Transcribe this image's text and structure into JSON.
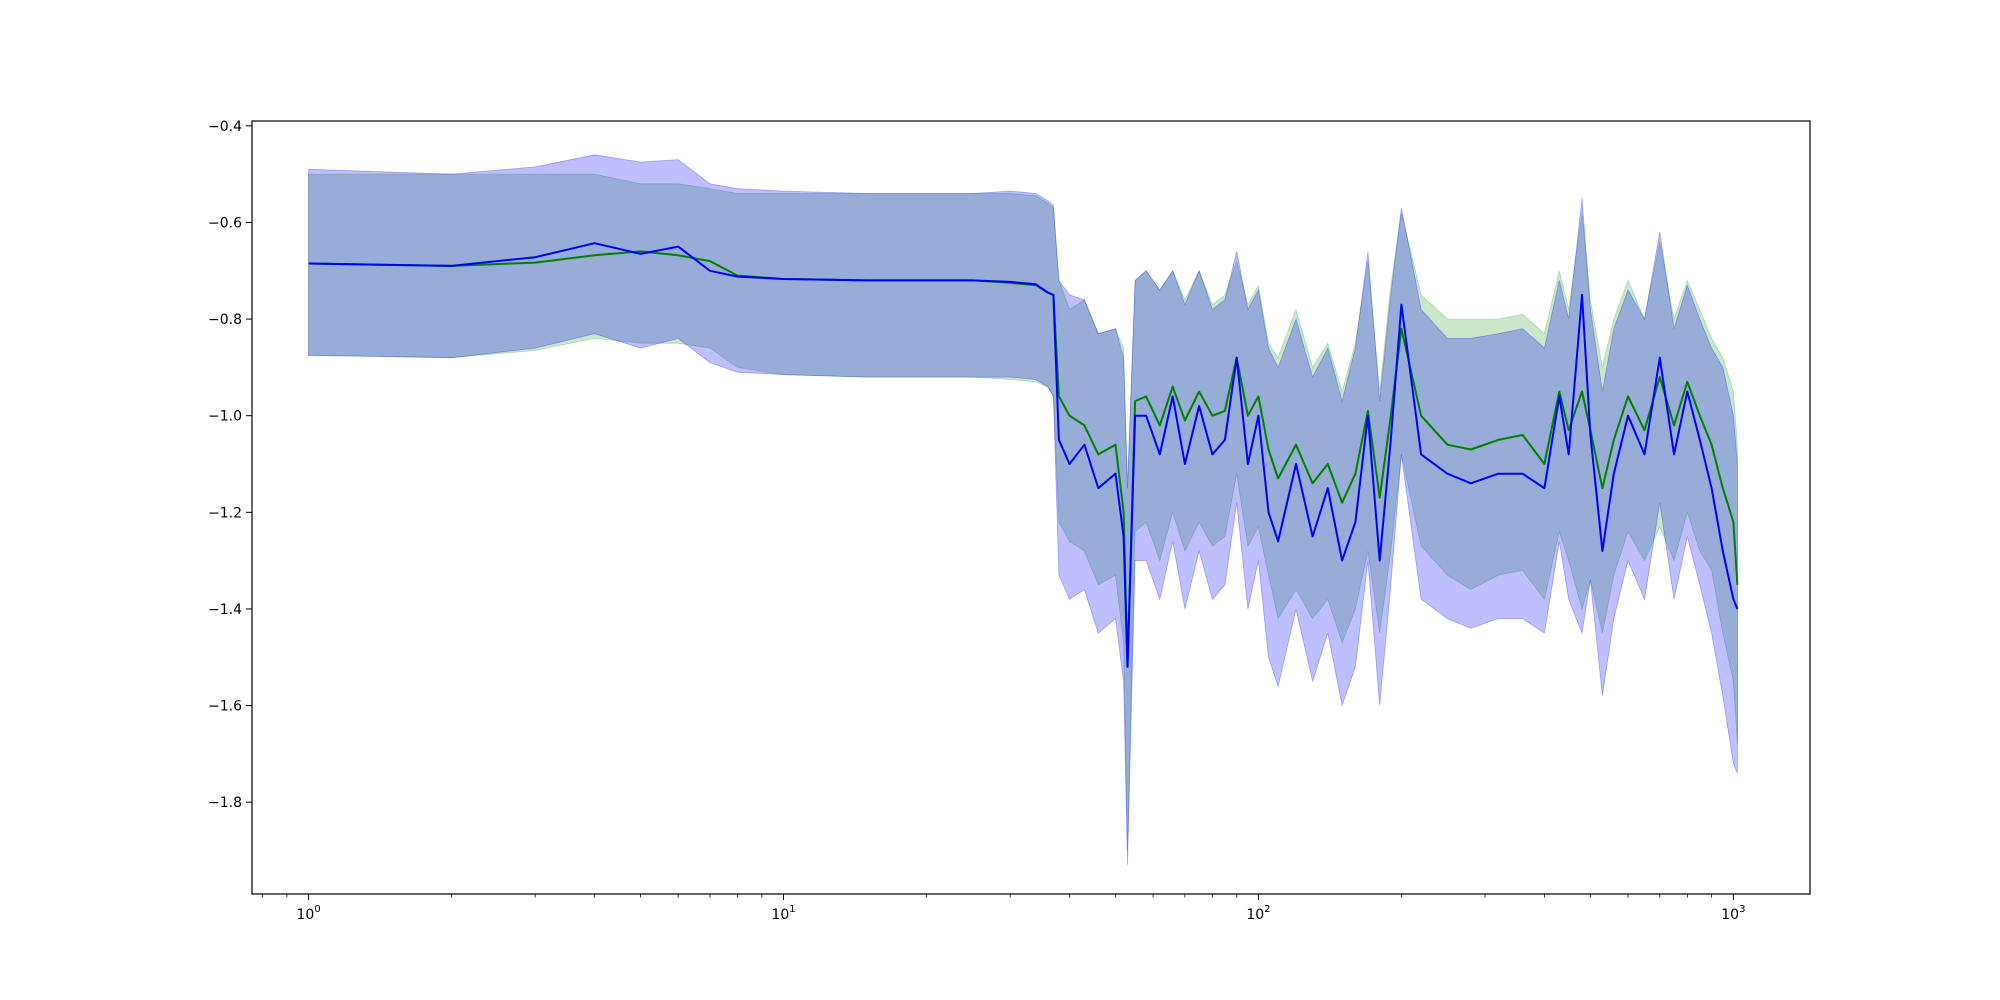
{
  "chart_data": {
    "type": "line",
    "title": "",
    "xlabel": "",
    "ylabel": "",
    "xscale": "log",
    "xlim": [
      0.76,
      1450
    ],
    "ylim": [
      -1.99,
      -0.39
    ],
    "grid": false,
    "x_ticks": [
      {
        "value": 1,
        "base": "10",
        "exp": "0"
      },
      {
        "value": 10,
        "base": "10",
        "exp": "1"
      },
      {
        "value": 100,
        "base": "10",
        "exp": "2"
      },
      {
        "value": 1000,
        "base": "10",
        "exp": "3"
      }
    ],
    "y_ticks": [
      {
        "value": -0.4,
        "label": "−0.4"
      },
      {
        "value": -0.6,
        "label": "−0.6"
      },
      {
        "value": -0.8,
        "label": "−0.8"
      },
      {
        "value": -1.0,
        "label": "−1.0"
      },
      {
        "value": -1.2,
        "label": "−1.2"
      },
      {
        "value": -1.4,
        "label": "−1.4"
      },
      {
        "value": -1.6,
        "label": "−1.6"
      },
      {
        "value": -1.8,
        "label": "−1.8"
      }
    ],
    "series": [
      {
        "color": "#008000",
        "band_color": "#2ca02c",
        "x": [
          1,
          2,
          3,
          4,
          5,
          6,
          7,
          8,
          10,
          15,
          20,
          25,
          30,
          34,
          36,
          37,
          38,
          40,
          43,
          46,
          50,
          52,
          53,
          55,
          58,
          62,
          66,
          70,
          75,
          80,
          85,
          90,
          95,
          100,
          105,
          110,
          120,
          130,
          140,
          150,
          160,
          170,
          180,
          190,
          200,
          220,
          250,
          280,
          320,
          360,
          400,
          430,
          450,
          480,
          500,
          530,
          560,
          600,
          650,
          700,
          750,
          800,
          850,
          900,
          950,
          1000,
          1020
        ],
        "y": [
          -0.685,
          -0.69,
          -0.683,
          -0.668,
          -0.66,
          -0.668,
          -0.68,
          -0.71,
          -0.717,
          -0.72,
          -0.72,
          -0.72,
          -0.725,
          -0.73,
          -0.745,
          -0.75,
          -0.96,
          -1.0,
          -1.02,
          -1.08,
          -1.06,
          -1.2,
          -1.52,
          -0.97,
          -0.96,
          -1.02,
          -0.94,
          -1.01,
          -0.95,
          -1.0,
          -0.99,
          -0.88,
          -1.0,
          -0.96,
          -1.07,
          -1.13,
          -1.06,
          -1.14,
          -1.1,
          -1.18,
          -1.12,
          -0.99,
          -1.17,
          -1.0,
          -0.82,
          -1.0,
          -1.06,
          -1.07,
          -1.05,
          -1.04,
          -1.1,
          -0.95,
          -1.03,
          -0.95,
          -1.03,
          -1.15,
          -1.05,
          -0.96,
          -1.03,
          -0.92,
          -1.02,
          -0.93,
          -1.0,
          -1.06,
          -1.15,
          -1.22,
          -1.35
        ],
        "upper": [
          -0.5,
          -0.5,
          -0.5,
          -0.5,
          -0.52,
          -0.52,
          -0.53,
          -0.54,
          -0.54,
          -0.54,
          -0.54,
          -0.54,
          -0.54,
          -0.545,
          -0.56,
          -0.57,
          -0.72,
          -0.78,
          -0.76,
          -0.83,
          -0.82,
          -0.86,
          -1.15,
          -0.72,
          -0.7,
          -0.74,
          -0.7,
          -0.76,
          -0.7,
          -0.77,
          -0.75,
          -0.68,
          -0.77,
          -0.73,
          -0.85,
          -0.88,
          -0.78,
          -0.9,
          -0.85,
          -0.95,
          -0.85,
          -0.68,
          -0.95,
          -0.73,
          -0.58,
          -0.75,
          -0.8,
          -0.8,
          -0.8,
          -0.79,
          -0.83,
          -0.7,
          -0.78,
          -0.58,
          -0.76,
          -0.9,
          -0.8,
          -0.72,
          -0.8,
          -0.64,
          -0.8,
          -0.72,
          -0.78,
          -0.84,
          -0.88,
          -0.95,
          -1.06
        ],
        "lower": [
          -0.875,
          -0.88,
          -0.865,
          -0.84,
          -0.85,
          -0.85,
          -0.86,
          -0.9,
          -0.915,
          -0.92,
          -0.92,
          -0.92,
          -0.925,
          -0.93,
          -0.94,
          -0.96,
          -1.22,
          -1.26,
          -1.28,
          -1.35,
          -1.33,
          -1.47,
          -1.9,
          -1.24,
          -1.22,
          -1.3,
          -1.2,
          -1.28,
          -1.22,
          -1.27,
          -1.25,
          -1.12,
          -1.27,
          -1.23,
          -1.33,
          -1.42,
          -1.36,
          -1.42,
          -1.38,
          -1.47,
          -1.4,
          -1.28,
          -1.45,
          -1.28,
          -1.08,
          -1.27,
          -1.33,
          -1.36,
          -1.33,
          -1.32,
          -1.38,
          -1.24,
          -1.3,
          -1.4,
          -1.34,
          -1.45,
          -1.33,
          -1.24,
          -1.3,
          -1.23,
          -1.3,
          -1.2,
          -1.28,
          -1.32,
          -1.45,
          -1.55,
          -1.68
        ]
      },
      {
        "color": "#0000ff",
        "band_color": "#0000ff",
        "x": [
          1,
          2,
          3,
          4,
          5,
          6,
          7,
          8,
          10,
          15,
          20,
          25,
          30,
          34,
          36,
          37,
          38,
          40,
          43,
          46,
          50,
          52,
          53,
          55,
          58,
          62,
          66,
          70,
          75,
          80,
          85,
          90,
          95,
          100,
          105,
          110,
          120,
          130,
          140,
          150,
          160,
          170,
          180,
          190,
          200,
          220,
          250,
          280,
          320,
          360,
          400,
          430,
          450,
          480,
          500,
          530,
          560,
          600,
          650,
          700,
          750,
          800,
          850,
          900,
          950,
          1000,
          1020
        ],
        "y": [
          -0.685,
          -0.69,
          -0.672,
          -0.643,
          -0.665,
          -0.65,
          -0.7,
          -0.712,
          -0.717,
          -0.72,
          -0.72,
          -0.72,
          -0.723,
          -0.728,
          -0.745,
          -0.75,
          -1.05,
          -1.1,
          -1.06,
          -1.15,
          -1.12,
          -1.25,
          -1.52,
          -1.0,
          -1.0,
          -1.08,
          -0.96,
          -1.1,
          -0.98,
          -1.08,
          -1.05,
          -0.88,
          -1.1,
          -1.0,
          -1.2,
          -1.26,
          -1.1,
          -1.25,
          -1.15,
          -1.3,
          -1.22,
          -1.0,
          -1.3,
          -1.05,
          -0.77,
          -1.08,
          -1.12,
          -1.14,
          -1.12,
          -1.12,
          -1.15,
          -0.96,
          -1.08,
          -0.75,
          -1.04,
          -1.28,
          -1.12,
          -1.0,
          -1.08,
          -0.88,
          -1.08,
          -0.95,
          -1.05,
          -1.15,
          -1.28,
          -1.38,
          -1.4
        ],
        "upper": [
          -0.49,
          -0.5,
          -0.485,
          -0.46,
          -0.475,
          -0.47,
          -0.52,
          -0.53,
          -0.535,
          -0.54,
          -0.54,
          -0.54,
          -0.535,
          -0.54,
          -0.555,
          -0.565,
          -0.72,
          -0.75,
          -0.76,
          -0.83,
          -0.82,
          -0.88,
          -1.15,
          -0.72,
          -0.7,
          -0.74,
          -0.7,
          -0.77,
          -0.7,
          -0.78,
          -0.76,
          -0.66,
          -0.78,
          -0.74,
          -0.86,
          -0.9,
          -0.8,
          -0.92,
          -0.86,
          -0.97,
          -0.86,
          -0.66,
          -0.97,
          -0.75,
          -0.57,
          -0.78,
          -0.84,
          -0.84,
          -0.83,
          -0.82,
          -0.86,
          -0.72,
          -0.8,
          -0.55,
          -0.78,
          -0.95,
          -0.82,
          -0.74,
          -0.8,
          -0.62,
          -0.82,
          -0.73,
          -0.8,
          -0.86,
          -0.9,
          -1.0,
          -1.1
        ],
        "lower": [
          -0.875,
          -0.88,
          -0.86,
          -0.83,
          -0.86,
          -0.84,
          -0.89,
          -0.91,
          -0.915,
          -0.92,
          -0.92,
          -0.92,
          -0.92,
          -0.925,
          -0.94,
          -0.96,
          -1.33,
          -1.38,
          -1.36,
          -1.45,
          -1.42,
          -1.55,
          -1.93,
          -1.3,
          -1.3,
          -1.38,
          -1.26,
          -1.4,
          -1.28,
          -1.38,
          -1.35,
          -1.18,
          -1.4,
          -1.3,
          -1.5,
          -1.56,
          -1.4,
          -1.55,
          -1.45,
          -1.6,
          -1.52,
          -1.3,
          -1.6,
          -1.35,
          -1.08,
          -1.38,
          -1.42,
          -1.44,
          -1.42,
          -1.42,
          -1.45,
          -1.26,
          -1.38,
          -1.45,
          -1.34,
          -1.58,
          -1.42,
          -1.3,
          -1.38,
          -1.18,
          -1.38,
          -1.25,
          -1.35,
          -1.45,
          -1.58,
          -1.72,
          -1.74
        ]
      }
    ]
  }
}
